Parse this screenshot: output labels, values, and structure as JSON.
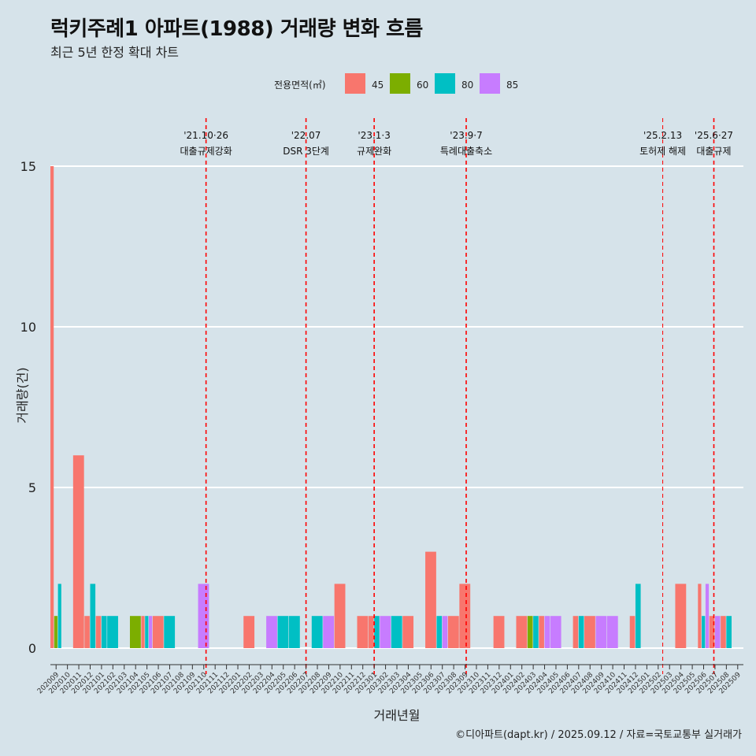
{
  "title": "럭키주례1 아파트(1988) 거래량 변화 흐름",
  "subtitle": "최근 5년 한정 확대 차트",
  "caption": "©디아파트(dapt.kr) / 2025.09.12 / 자료=국토교통부 실거래가",
  "colors": {
    "45": "#f8766d",
    "60": "#7cae00",
    "80": "#00bfc4",
    "85": "#c77cff",
    "event_line": "#ff0000",
    "grid": "#ffffff"
  },
  "chart_data": {
    "type": "bar",
    "xlabel": "거래년월",
    "ylabel": "거래량(건)",
    "ylim": [
      0,
      15
    ],
    "y_ticks": [
      0,
      5,
      10,
      15
    ],
    "legend_title": "전용면적(㎡)",
    "legend_position": "top",
    "categories": [
      "202009",
      "202010",
      "202011",
      "202012",
      "202101",
      "202102",
      "202103",
      "202104",
      "202105",
      "202106",
      "202107",
      "202108",
      "202109",
      "202110",
      "202111",
      "202112",
      "202201",
      "202202",
      "202203",
      "202204",
      "202205",
      "202206",
      "202207",
      "202208",
      "202209",
      "202210",
      "202211",
      "202212",
      "202301",
      "202302",
      "202303",
      "202304",
      "202305",
      "202306",
      "202307",
      "202308",
      "202309",
      "202310",
      "202311",
      "202312",
      "202401",
      "202402",
      "202403",
      "202404",
      "202405",
      "202406",
      "202407",
      "202408",
      "202409",
      "202410",
      "202411",
      "202412",
      "202501",
      "202502",
      "202503",
      "202504",
      "202505",
      "202506",
      "202507",
      "202508",
      "202509"
    ],
    "series": [
      {
        "name": "45",
        "values": [
          15,
          0,
          6,
          1,
          1,
          0,
          0,
          0,
          1,
          1,
          0,
          0,
          0,
          0,
          0,
          0,
          0,
          1,
          0,
          0,
          0,
          0,
          0,
          0,
          0,
          2,
          0,
          1,
          1,
          0,
          0,
          1,
          0,
          3,
          0,
          1,
          2,
          0,
          0,
          1,
          0,
          1,
          0,
          1,
          0,
          0,
          1,
          1,
          0,
          0,
          0,
          1,
          0,
          0,
          0,
          2,
          0,
          2,
          1,
          1,
          0
        ]
      },
      {
        "name": "60",
        "values": [
          1,
          0,
          0,
          0,
          0,
          0,
          0,
          1,
          0,
          0,
          0,
          0,
          0,
          0,
          0,
          0,
          0,
          0,
          0,
          0,
          0,
          0,
          0,
          0,
          0,
          0,
          0,
          0,
          0,
          0,
          0,
          0,
          0,
          0,
          0,
          0,
          0,
          0,
          0,
          0,
          0,
          0,
          1,
          0,
          0,
          0,
          0,
          0,
          0,
          0,
          0,
          0,
          0,
          0,
          0,
          0,
          0,
          0,
          0,
          0,
          0
        ]
      },
      {
        "name": "80",
        "values": [
          2,
          0,
          0,
          2,
          1,
          1,
          0,
          0,
          1,
          0,
          1,
          0,
          0,
          0,
          0,
          0,
          0,
          0,
          0,
          0,
          1,
          1,
          0,
          1,
          0,
          0,
          0,
          0,
          1,
          0,
          1,
          0,
          0,
          0,
          1,
          0,
          0,
          0,
          0,
          0,
          0,
          0,
          1,
          0,
          0,
          0,
          1,
          0,
          0,
          0,
          0,
          2,
          0,
          0,
          0,
          0,
          0,
          1,
          0,
          1,
          0
        ]
      },
      {
        "name": "85",
        "values": [
          0,
          0,
          0,
          0,
          0,
          0,
          0,
          0,
          1,
          0,
          0,
          0,
          0,
          2,
          0,
          0,
          0,
          0,
          0,
          1,
          0,
          0,
          0,
          0,
          1,
          0,
          0,
          0,
          0,
          1,
          0,
          0,
          0,
          0,
          1,
          0,
          0,
          0,
          0,
          0,
          0,
          0,
          0,
          1,
          1,
          0,
          0,
          0,
          1,
          1,
          0,
          0,
          0,
          0,
          0,
          0,
          0,
          2,
          1,
          0,
          0
        ]
      }
    ],
    "events": [
      {
        "date": "'21.10·26",
        "label": "대출규제강화",
        "x": 13.2
      },
      {
        "date": "'22.07",
        "label": "DSR 3단계",
        "x": 22.0
      },
      {
        "date": "'23.1·3",
        "label": "규제완화",
        "x": 28.0
      },
      {
        "date": "'23.9·7",
        "label": "특례대출축소",
        "x": 36.1
      },
      {
        "date": "'25.2.13",
        "label": "토허제 해제",
        "x": 53.4
      },
      {
        "date": "'25.6·27",
        "label": "대출규제",
        "x": 57.9
      }
    ]
  }
}
